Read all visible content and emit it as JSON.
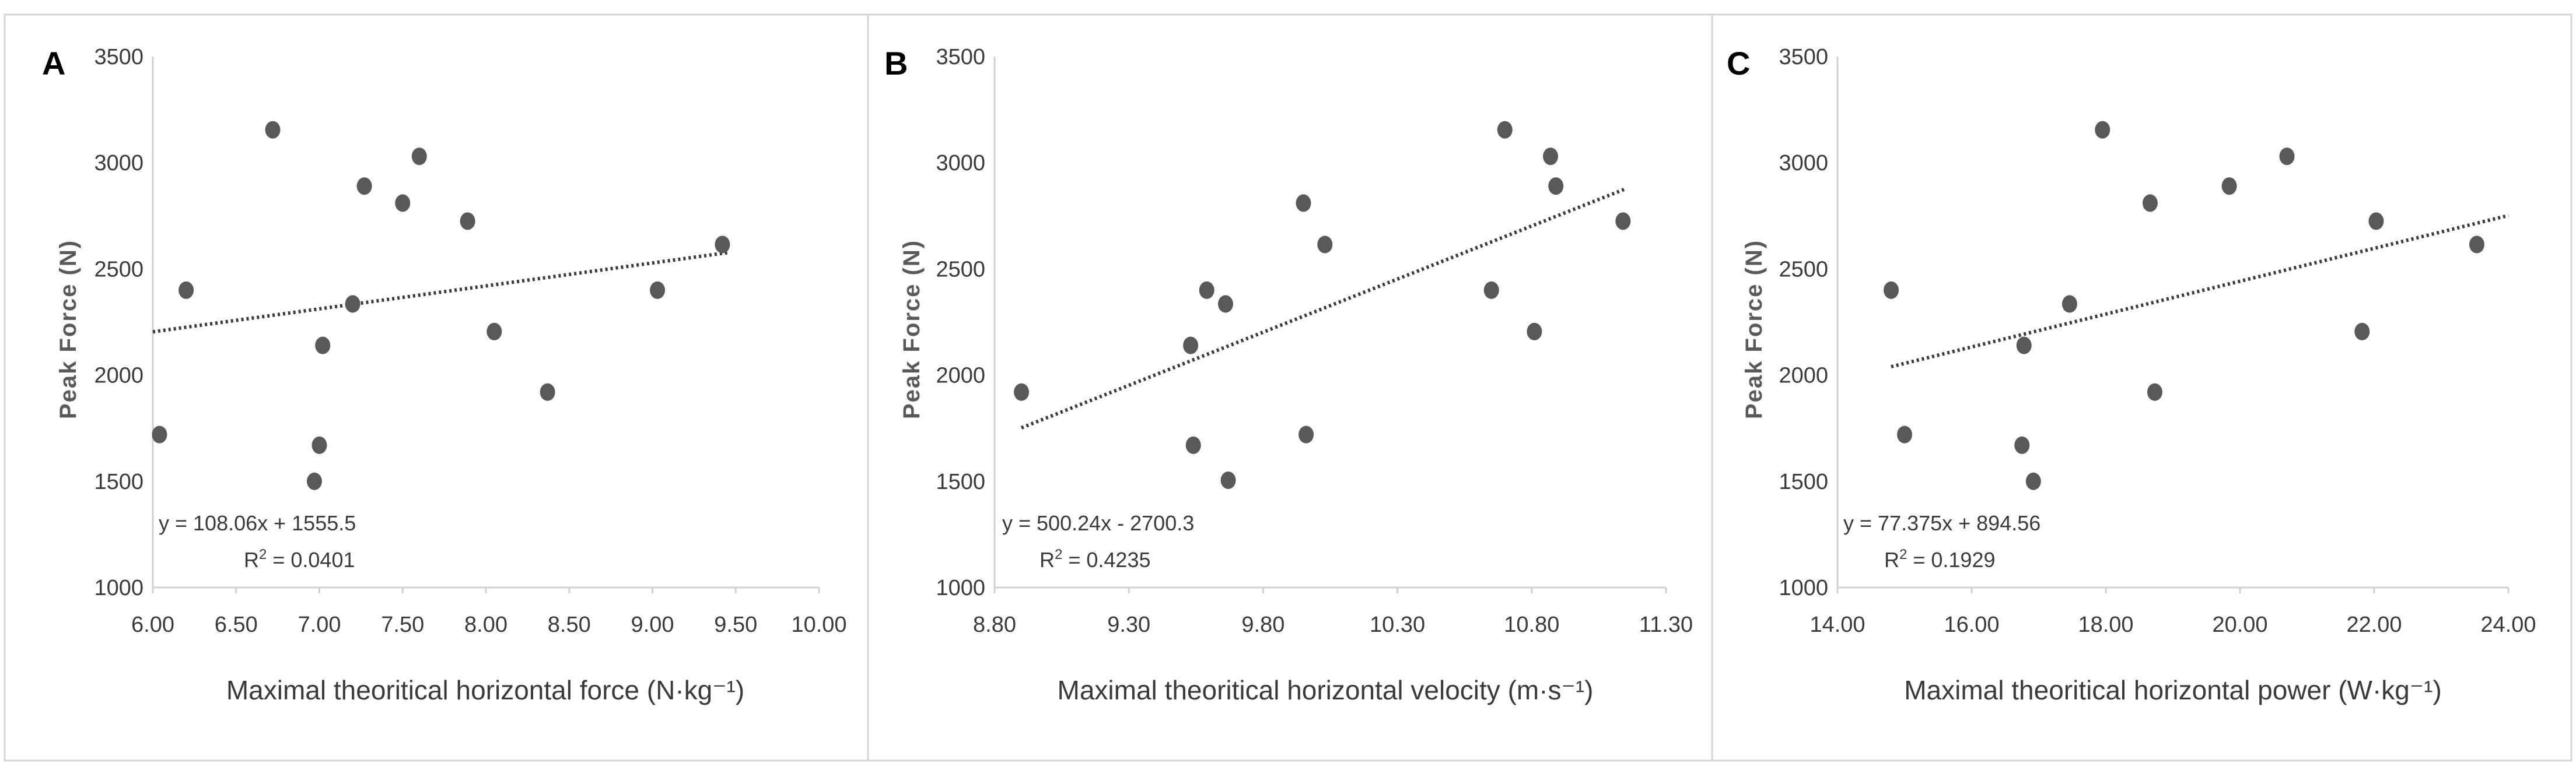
{
  "chart_data": [
    {
      "type": "scatter",
      "panel": "A",
      "xlabel": "Maximal theoritical horizontal force (N·kg⁻¹)",
      "ylabel": "Peak Force (N)",
      "xlim": [
        6.0,
        10.0
      ],
      "ylim": [
        1000,
        3500
      ],
      "xticks": [
        6.0,
        6.5,
        7.0,
        7.5,
        8.0,
        8.5,
        9.0,
        9.5,
        10.0
      ],
      "xtick_labels": [
        "6.00",
        "6.50",
        "7.00",
        "7.50",
        "8.00",
        "8.50",
        "9.00",
        "9.50",
        "10.00"
      ],
      "yticks": [
        1000,
        1500,
        2000,
        2500,
        3000,
        3500
      ],
      "ytick_labels": [
        "1000",
        "1500",
        "2000",
        "2500",
        "3000",
        "3500"
      ],
      "x": [
        6.04,
        6.2,
        6.72,
        6.97,
        7.0,
        7.02,
        7.2,
        7.27,
        7.5,
        7.6,
        7.89,
        8.05,
        8.37,
        9.03,
        9.42
      ],
      "y": [
        1720,
        2400,
        3155,
        1500,
        1670,
        2140,
        2335,
        2890,
        2810,
        3030,
        2725,
        2205,
        1920,
        2400,
        2615
      ],
      "trendline": {
        "slope": 108.06,
        "intercept": 1555.5,
        "x_range": [
          6.0,
          9.45
        ]
      },
      "equation": "y = 108.06x + 1555.5",
      "r2_prefix": "R",
      "r2_exp": "2",
      "r2_value": " = 0.0401"
    },
    {
      "type": "scatter",
      "panel": "B",
      "xlabel": "Maximal theoritical horizontal velocity (m·s⁻¹)",
      "ylabel": "Peak Force (N)",
      "xlim": [
        8.8,
        11.3
      ],
      "ylim": [
        1000,
        3500
      ],
      "xticks": [
        8.8,
        9.3,
        9.8,
        10.3,
        10.8,
        11.3
      ],
      "xtick_labels": [
        "8.80",
        "9.30",
        "9.80",
        "10.30",
        "10.80",
        "11.30"
      ],
      "yticks": [
        1000,
        1500,
        2000,
        2500,
        3000,
        3500
      ],
      "ytick_labels": [
        "1000",
        "1500",
        "2000",
        "2500",
        "3000",
        "3500"
      ],
      "x": [
        8.9,
        9.53,
        9.54,
        9.59,
        9.66,
        9.67,
        9.95,
        9.96,
        10.03,
        10.65,
        10.7,
        10.81,
        10.87,
        10.89,
        11.14
      ],
      "y": [
        1920,
        2140,
        1670,
        2400,
        2335,
        1505,
        2810,
        1720,
        2615,
        2400,
        3155,
        2205,
        3030,
        2890,
        2725
      ],
      "trendline": {
        "slope": 500.24,
        "intercept": -2700.3,
        "x_range": [
          8.9,
          11.15
        ]
      },
      "equation": "y = 500.24x - 2700.3",
      "r2_prefix": "R",
      "r2_exp": "2",
      "r2_value": " = 0.4235"
    },
    {
      "type": "scatter",
      "panel": "C",
      "xlabel": "Maximal theoritical horizontal power (W·kg⁻¹)",
      "ylabel": "Peak Force (N)",
      "xlim": [
        14.0,
        24.0
      ],
      "ylim": [
        1000,
        3500
      ],
      "xticks": [
        14.0,
        16.0,
        18.0,
        20.0,
        22.0,
        24.0
      ],
      "xtick_labels": [
        "14.00",
        "16.00",
        "18.00",
        "20.00",
        "22.00",
        "24.00"
      ],
      "yticks": [
        1000,
        1500,
        2000,
        2500,
        3000,
        3500
      ],
      "ytick_labels": [
        "1000",
        "1500",
        "2000",
        "2500",
        "3000",
        "3500"
      ],
      "x": [
        14.8,
        15.0,
        16.75,
        16.78,
        16.92,
        17.46,
        17.95,
        18.66,
        18.73,
        19.84,
        20.7,
        21.82,
        22.03,
        23.53
      ],
      "y": [
        2400,
        1720,
        1670,
        2140,
        1500,
        2335,
        3155,
        2810,
        1920,
        2890,
        3030,
        2205,
        2725,
        2615
      ],
      "trendline": {
        "slope": 77.375,
        "intercept": 894.56,
        "x_range": [
          14.8,
          24.0
        ]
      },
      "equation": "y = 77.375x + 894.56",
      "r2_prefix": "R",
      "r2_exp": "2",
      "r2_value": " = 0.1929"
    }
  ]
}
